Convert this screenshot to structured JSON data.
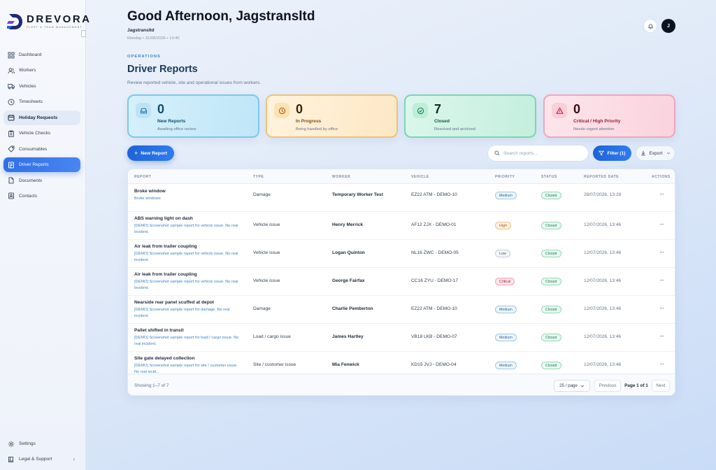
{
  "brand": {
    "name": "DREVORA",
    "tagline": "FLEET & TEAM MANAGEMENT"
  },
  "sidebar": {
    "items": [
      {
        "label": "Dashboard",
        "icon": "grid-icon"
      },
      {
        "label": "Workers",
        "icon": "users-icon"
      },
      {
        "label": "Vehicles",
        "icon": "truck-icon"
      },
      {
        "label": "Timesheets",
        "icon": "clock-icon"
      },
      {
        "label": "Holiday Requests",
        "icon": "calendar-icon"
      },
      {
        "label": "Vehicle Checks",
        "icon": "clipboard-icon"
      },
      {
        "label": "Consumables",
        "icon": "tag-icon"
      },
      {
        "label": "Driver Reports",
        "icon": "report-icon"
      },
      {
        "label": "Documents",
        "icon": "document-icon"
      },
      {
        "label": "Contacts",
        "icon": "contacts-icon"
      }
    ],
    "bottom": [
      {
        "label": "Settings",
        "icon": "gear-icon"
      },
      {
        "label": "Legal & Support",
        "icon": "book-icon",
        "chevron": "›"
      }
    ]
  },
  "header": {
    "greeting": "Good Afternoon, Jagstransltd",
    "company": "Jagstransltd",
    "date": "Monday • 31/08/2026 • 13:40",
    "avatar_initial": "J"
  },
  "page": {
    "section": "OPERATIONS",
    "title": "Driver Reports",
    "description": "Review reported vehicle, site and operational issues from workers."
  },
  "stats": [
    {
      "value": "0",
      "label": "New Reports",
      "sub": "Awaiting office review"
    },
    {
      "value": "0",
      "label": "In Progress",
      "sub": "Being handled by office"
    },
    {
      "value": "7",
      "label": "Closed",
      "sub": "Resolved and archived"
    },
    {
      "value": "0",
      "label": "Critical / High Priority",
      "sub": "Needs urgent attention"
    }
  ],
  "toolbar": {
    "new_report": "New Report",
    "search_placeholder": "Search reports...",
    "filter": "Filter (1)",
    "export": "Export"
  },
  "table": {
    "columns": [
      "REPORT",
      "TYPE",
      "WORKER",
      "VEHICLE",
      "PRIORITY",
      "STATUS",
      "REPORTED DATE",
      "ACTIONS"
    ],
    "rows": [
      {
        "title": "Broke window",
        "desc": "Broke windows",
        "type": "Damage",
        "worker": "Temporary Worker Test",
        "vehicle": "EZ22 ATM - DEMO-10",
        "priority": "Medium",
        "status": "Closed",
        "date": "28/07/2026, 13:28"
      },
      {
        "title": "ABS warning light on dash",
        "desc": "[DEMO] Screenshot sample report for vehicle issue. No real incident.",
        "type": "Vehicle issue",
        "worker": "Henry Merrick",
        "vehicle": "AF12 ZJX - DEMO-01",
        "priority": "High",
        "status": "Closed",
        "date": "12/07/2026, 13:46"
      },
      {
        "title": "Air leak from trailer coupling",
        "desc": "[DEMO] Screenshot sample report for vehicle issue. No real incident.",
        "type": "Vehicle issue",
        "worker": "Logan Quinton",
        "vehicle": "NL16 ZWC - DEMO-05",
        "priority": "Low",
        "status": "Closed",
        "date": "12/07/2026, 13:46"
      },
      {
        "title": "Air leak from trailer coupling",
        "desc": "[DEMO] Screenshot sample report for vehicle issue. No real incident.",
        "type": "Vehicle issue",
        "worker": "George Fairfax",
        "vehicle": "CC16 ZYU - DEMO-17",
        "priority": "Critical",
        "status": "Closed",
        "date": "12/07/2026, 13:46"
      },
      {
        "title": "Nearside rear panel scuffed at depot",
        "desc": "[DEMO] Screenshot sample report for damage. No real incident.",
        "type": "Damage",
        "worker": "Charlie Pemberton",
        "vehicle": "EZ22 ATM - DEMO-10",
        "priority": "Medium",
        "status": "Closed",
        "date": "12/07/2026, 13:46"
      },
      {
        "title": "Pallet shifted in transit",
        "desc": "[DEMO] Screenshot sample report for load / cargo issue. No real incident.",
        "type": "Load / cargo issue",
        "worker": "James Hartley",
        "vehicle": "VB18 LKB - DEMO-07",
        "priority": "Medium",
        "status": "Closed",
        "date": "12/07/2026, 13:46"
      },
      {
        "title": "Site gate delayed collection",
        "desc": "[DEMO] Screenshot sample report for site / customer issue. No real incid...",
        "type": "Site / customer issue",
        "worker": "Mia Fenwick",
        "vehicle": "KD15 JVJ - DEMO-04",
        "priority": "Medium",
        "status": "Closed",
        "date": "12/07/2026, 13:46"
      }
    ],
    "action_glyph": "···"
  },
  "pagination": {
    "showing": "Showing 1–7 of 7",
    "per_page": "25 / page",
    "prev": "Previous",
    "current": "Page 1 of 1",
    "next": "Next"
  },
  "colors": {
    "accent": "#2f6fe6",
    "closed": "#0f7a4b",
    "critical": "#be123c"
  }
}
